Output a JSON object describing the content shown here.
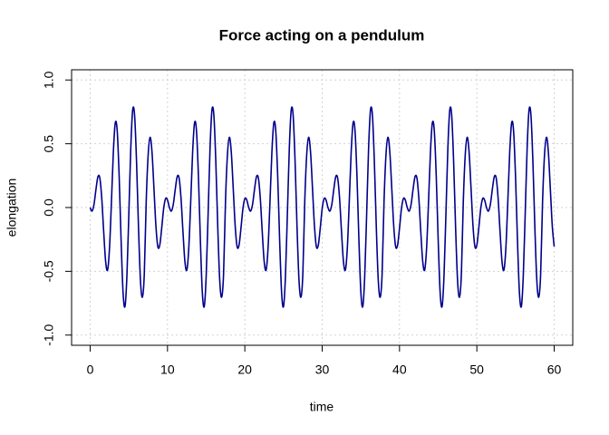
{
  "chart_data": {
    "type": "line",
    "title": "Force acting on a pendulum",
    "x_label": "time",
    "y_label": "elongation",
    "xlim": [
      -2.4,
      62.4
    ],
    "ylim": [
      -1.08,
      1.08
    ],
    "xticks": [
      0,
      10,
      20,
      30,
      40,
      50,
      60
    ],
    "yticks": [
      {
        "value": -1,
        "label": "-1.0"
      },
      {
        "value": -0.5,
        "label": "-0.5"
      },
      {
        "value": 0,
        "label": "0.0"
      },
      {
        "value": 0.5,
        "label": "0.5"
      },
      {
        "value": 1,
        "label": "1.0"
      }
    ],
    "grid": true,
    "x": [
      0,
      0.25,
      0.5,
      0.75,
      1,
      1.25,
      1.5,
      1.75,
      2,
      2.25,
      2.5,
      2.75,
      3,
      3.25,
      3.5,
      3.75,
      4,
      4.25,
      4.5,
      4.75,
      5,
      5.25,
      5.5,
      5.75,
      6,
      6.25,
      6.5,
      6.75,
      7,
      7.25,
      7.5,
      7.75,
      8,
      8.25,
      8.5,
      8.75,
      9,
      9.25,
      9.5,
      9.75,
      10,
      10.25,
      10.5,
      10.75,
      11,
      11.25,
      11.5,
      11.75,
      12,
      12.25,
      12.5,
      12.75,
      13,
      13.25,
      13.5,
      13.75,
      14,
      14.25,
      14.5,
      14.75,
      15,
      15.25,
      15.5,
      15.75,
      16,
      16.25,
      16.5,
      16.75,
      17,
      17.25,
      17.5,
      17.75,
      18,
      18.25,
      18.5,
      18.75,
      19,
      19.25,
      19.5,
      19.75,
      20,
      20.25,
      20.5,
      20.75,
      21,
      21.25,
      21.5,
      21.75,
      22,
      22.25,
      22.5,
      22.75,
      23,
      23.25,
      23.5,
      23.75,
      24,
      24.25,
      24.5,
      24.75,
      25,
      25.25,
      25.5,
      25.75,
      26,
      26.25,
      26.5,
      26.75,
      27,
      27.25,
      27.5,
      27.75,
      28,
      28.25,
      28.5,
      28.75,
      29,
      29.25,
      29.5,
      29.75,
      30,
      30.25,
      30.5,
      30.75,
      31,
      31.25,
      31.5,
      31.75,
      32,
      32.25,
      32.5,
      32.75,
      33,
      33.25,
      33.5,
      33.75,
      34,
      34.25,
      34.5,
      34.75,
      35,
      35.25,
      35.5,
      35.75,
      36,
      36.25,
      36.5,
      36.75,
      37,
      37.25,
      37.5,
      37.75,
      38,
      38.25,
      38.5,
      38.75,
      39,
      39.25,
      39.5,
      39.75,
      40,
      40.25,
      40.5,
      40.75,
      41,
      41.25,
      41.5,
      41.75,
      42,
      42.25,
      42.5,
      42.75,
      43,
      43.25,
      43.5,
      43.75,
      44,
      44.25,
      44.5,
      44.75,
      45,
      45.25,
      45.5,
      45.75,
      46,
      46.25,
      46.5,
      46.75,
      47,
      47.25,
      47.5,
      47.75,
      48,
      48.25,
      48.5,
      48.75,
      49,
      49.25,
      49.5,
      49.75,
      50,
      50.25,
      50.5,
      50.75,
      51,
      51.25,
      51.5,
      51.75,
      52,
      52.25,
      52.5,
      52.75,
      53,
      53.25,
      53.5,
      53.75,
      54,
      54.25,
      54.5,
      54.75,
      55,
      55.25,
      55.5,
      55.75,
      56,
      56.25,
      56.5,
      56.75,
      57,
      57.25,
      57.5,
      57.75,
      58,
      58.25,
      58.5,
      58.75,
      59,
      59.25,
      59.5,
      59.75,
      60
    ],
    "series": [
      {
        "color": "#00008b",
        "values": [
          0,
          -0.028,
          0.025,
          0.141,
          0.241,
          0.232,
          0.072,
          -0.189,
          -0.422,
          -0.49,
          -0.32,
          0.041,
          0.435,
          0.665,
          0.6,
          0.245,
          -0.253,
          -0.661,
          -0.777,
          -0.541,
          -0.054,
          0.462,
          0.766,
          0.72,
          0.355,
          -0.154,
          -0.566,
          -0.703,
          -0.521,
          0.051,
          0.413,
          0.551,
          0.432,
          0.149,
          -0.142,
          -0.306,
          -0.295,
          -0.162,
          -0.01,
          0.07,
          0.059,
          0,
          -0.028,
          0.025,
          0.141,
          0.241,
          0.232,
          0.072,
          -0.189,
          -0.422,
          -0.49,
          -0.32,
          0.041,
          0.435,
          0.665,
          0.6,
          0.245,
          -0.253,
          -0.661,
          -0.777,
          -0.541,
          -0.054,
          0.462,
          0.766,
          0.72,
          0.355,
          -0.154,
          -0.566,
          -0.703,
          -0.521,
          0.051,
          0.413,
          0.551,
          0.432,
          0.149,
          -0.142,
          -0.306,
          -0.295,
          -0.162,
          -0.01,
          0.07,
          0.059,
          0,
          -0.028,
          0.025,
          0.141,
          0.241,
          0.232,
          0.072,
          -0.189,
          -0.422,
          -0.49,
          -0.32,
          0.041,
          0.435,
          0.665,
          0.6,
          0.245,
          -0.253,
          -0.661,
          -0.777,
          -0.541,
          -0.054,
          0.462,
          0.766,
          0.72,
          0.355,
          -0.154,
          -0.566,
          -0.703,
          -0.521,
          0.051,
          0.413,
          0.551,
          0.432,
          0.149,
          -0.142,
          -0.306,
          -0.295,
          -0.162,
          -0.01,
          0.07,
          0.059,
          0,
          -0.028,
          0.025,
          0.141,
          0.241,
          0.232,
          0.072,
          -0.189,
          -0.422,
          -0.49,
          -0.32,
          0.041,
          0.435,
          0.665,
          0.6,
          0.245,
          -0.253,
          -0.661,
          -0.777,
          -0.541,
          -0.054,
          0.462,
          0.766,
          0.72,
          0.355,
          -0.154,
          -0.566,
          -0.703,
          -0.521,
          0.051,
          0.413,
          0.551,
          0.432,
          0.149,
          -0.142,
          -0.306,
          -0.295,
          -0.162,
          -0.01,
          0.07,
          0.059,
          0,
          -0.028,
          0.025,
          0.141,
          0.241,
          0.232,
          0.072,
          -0.189,
          -0.422,
          -0.49,
          -0.32,
          0.041,
          0.435,
          0.665,
          0.6,
          0.245,
          -0.253,
          -0.661,
          -0.777,
          -0.541,
          -0.054,
          0.462,
          0.766,
          0.72,
          0.355,
          -0.154,
          -0.566,
          -0.703,
          -0.521,
          0.051,
          0.413,
          0.551,
          0.432,
          0.149,
          -0.142,
          -0.306,
          -0.295,
          -0.162,
          -0.01,
          0.07,
          0.059,
          0,
          -0.028,
          0.025,
          0.141,
          0.241,
          0.232,
          0.072,
          -0.189,
          -0.422,
          -0.49,
          -0.32,
          0.041,
          0.435,
          0.665,
          0.6,
          0.245,
          -0.253,
          -0.661,
          -0.777,
          -0.541,
          -0.054,
          0.462,
          0.766,
          0.72,
          0.355,
          -0.154,
          -0.566,
          -0.703,
          -0.521,
          0.051,
          0.413,
          0.551,
          0.432,
          0.149,
          -0.142,
          -0.306
        ]
      }
    ]
  }
}
